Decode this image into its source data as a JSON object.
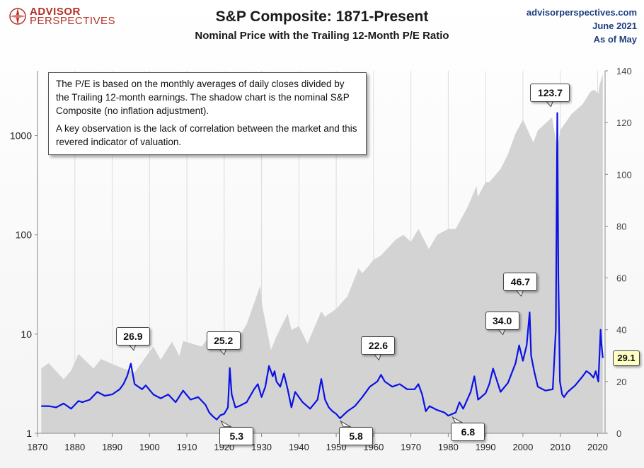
{
  "header": {
    "logo_line1": "ADVISOR",
    "logo_line2": "PERSPECTIVES",
    "title": "S&P Composite: 1871-Present",
    "subtitle": "Nominal Price with the Trailing 12-Month P/E Ratio",
    "source_site": "advisorperspectives.com",
    "source_date": "June 2021",
    "source_asof": "As of May"
  },
  "note": {
    "paragraph1": "The P/E is based on the monthly  averages of daily closes divided by the Trailing 12-month earnings. The shadow chart is the nominal S&P Composite (no inflation adjustment).",
    "paragraph2": "A key observation is the lack of correlation between the market and this revered indicator of valuation."
  },
  "colors": {
    "pe_line": "#0a12e6",
    "price_area": "#d3d3d3",
    "gridline": "#dddddd",
    "current_label_bg": "#ffffc4",
    "brand": "#b52f26"
  },
  "chart_data": {
    "type": "line",
    "x_axis": {
      "range": [
        1870,
        2022
      ],
      "ticks": [
        1870,
        1880,
        1890,
        1900,
        1910,
        1920,
        1930,
        1940,
        1950,
        1960,
        1970,
        1980,
        1990,
        2000,
        2010,
        2020
      ],
      "tick_labels": [
        "1870",
        "1880",
        "1890",
        "1900",
        "1910",
        "1920",
        "1930",
        "1940",
        "1950",
        "1960",
        "1970",
        "1980",
        "1990",
        "2000",
        "2010",
        "2020"
      ]
    },
    "y_left": {
      "scale": "log",
      "range": [
        1,
        4500
      ],
      "ticks": [
        1,
        10,
        100,
        1000
      ],
      "tick_labels": [
        "1",
        "10",
        "100",
        "1000"
      ]
    },
    "y_right": {
      "scale": "linear",
      "range": [
        0,
        140
      ],
      "ticks": [
        0,
        20,
        40,
        60,
        80,
        100,
        120,
        140
      ],
      "tick_labels": [
        "0",
        "20",
        "40",
        "60",
        "80",
        "100",
        "120",
        "140"
      ]
    },
    "grid": {
      "vertical": true,
      "horizontal": false
    },
    "series": [
      {
        "type": "area",
        "axis": "left",
        "x": [
          1871,
          1873,
          1877,
          1879,
          1881,
          1885,
          1887,
          1890,
          1893,
          1896,
          1899,
          1901,
          1903,
          1906,
          1908,
          1909,
          1914,
          1916,
          1917,
          1919,
          1921,
          1924,
          1926,
          1929.7,
          1930,
          1932.5,
          1934,
          1937,
          1938,
          1940,
          1942.3,
          1946,
          1947,
          1950,
          1953,
          1956,
          1957,
          1960,
          1962,
          1966,
          1968,
          1970,
          1972,
          1974.8,
          1977,
          1980,
          1982,
          1985,
          1987.6,
          1987.9,
          1990,
          1991,
          1994,
          1996,
          1998,
          2000,
          2002.8,
          2004,
          2007.8,
          2009.2,
          2010,
          2013,
          2016,
          2018,
          2019,
          2020.2,
          2020.5,
          2021.4
        ],
        "y": [
          4.5,
          5.1,
          3.5,
          4.3,
          6.3,
          4.5,
          5.6,
          5.0,
          4.5,
          4.1,
          5.9,
          7.5,
          5.5,
          8.4,
          6.0,
          8.5,
          7.5,
          9.5,
          7.0,
          9.0,
          6.7,
          9.5,
          12.5,
          31.0,
          21.0,
          6.9,
          9.5,
          16.0,
          11.0,
          12.0,
          8.0,
          17.0,
          15.0,
          18.0,
          24.0,
          46.0,
          41.0,
          56.0,
          62.0,
          90.0,
          100.0,
          85.0,
          115.0,
          72.0,
          100.0,
          115.0,
          115.0,
          185.0,
          310.0,
          240.0,
          340.0,
          340.0,
          460.0,
          650.0,
          1050.0,
          1450.0,
          850.0,
          1130.0,
          1530.0,
          735.0,
          1140.0,
          1650.0,
          2070.0,
          2750.0,
          2900.0,
          2650.0,
          3200.0,
          4180.0
        ]
      },
      {
        "type": "line",
        "axis": "right",
        "x": [
          1871,
          1873,
          1875,
          1877,
          1879,
          1881,
          1882,
          1884,
          1886,
          1888,
          1890,
          1892,
          1893,
          1894,
          1895,
          1896,
          1898,
          1899,
          1901,
          1903,
          1905,
          1907,
          1909,
          1911,
          1913,
          1915,
          1916,
          1917,
          1918,
          1919,
          1920,
          1921,
          1921.5,
          1922,
          1923,
          1924,
          1926,
          1928,
          1929,
          1930,
          1931,
          1932,
          1933,
          1933.5,
          1934,
          1935,
          1936,
          1937,
          1938,
          1939,
          1941,
          1943,
          1945,
          1946,
          1947,
          1948,
          1949,
          1950,
          1951,
          1953,
          1955,
          1957,
          1959,
          1961,
          1962,
          1963,
          1965,
          1967,
          1969,
          1971,
          1972,
          1973,
          1974,
          1975,
          1977,
          1979,
          1980,
          1982,
          1983,
          1984,
          1986,
          1987,
          1988,
          1990,
          1991,
          1992,
          1994,
          1996,
          1998,
          1999,
          2000,
          2001,
          2001.8,
          2002.2,
          2003,
          2004,
          2006,
          2008,
          2008.8,
          2009.2,
          2009.5,
          2009.9,
          2010.5,
          2011,
          2012,
          2014,
          2016,
          2017,
          2018,
          2018.9,
          2019.5,
          2020.2,
          2020.8,
          2021,
          2021.4
        ],
        "y": [
          10.5,
          10.5,
          10.0,
          11.5,
          9.5,
          12.5,
          12.0,
          13.0,
          16.0,
          14.5,
          15.0,
          17.0,
          19.0,
          22.0,
          26.9,
          19.0,
          17.0,
          18.5,
          15.0,
          13.5,
          15.0,
          12.0,
          16.5,
          13.0,
          14.0,
          11.0,
          8.0,
          6.5,
          5.3,
          7.0,
          7.5,
          10.0,
          25.2,
          15.0,
          10.0,
          10.5,
          12.0,
          17.0,
          19.0,
          14.0,
          18.0,
          26.0,
          22.0,
          24.0,
          20.0,
          18.0,
          23.0,
          17.0,
          10.0,
          16.0,
          12.0,
          9.5,
          13.0,
          21.0,
          13.0,
          10.0,
          8.5,
          7.5,
          5.8,
          8.5,
          10.5,
          14.0,
          18.0,
          20.0,
          22.6,
          20.0,
          18.0,
          19.0,
          17.0,
          17.0,
          19.0,
          15.0,
          8.5,
          10.5,
          9.0,
          8.0,
          6.8,
          8.0,
          12.0,
          9.5,
          16.0,
          22.0,
          13.0,
          15.5,
          19.0,
          25.0,
          16.0,
          19.5,
          27.0,
          34.0,
          28.0,
          34.0,
          46.7,
          30.0,
          24.0,
          18.0,
          16.5,
          17.0,
          40.0,
          123.7,
          60.0,
          20.0,
          15.0,
          14.0,
          16.0,
          18.5,
          22.0,
          24.0,
          23.0,
          21.5,
          24.0,
          20.0,
          40.0,
          35.0,
          29.1
        ]
      }
    ],
    "annotations": [
      {
        "label": "26.9",
        "x": 1895,
        "y": 26.9
      },
      {
        "label": "25.2",
        "x": 1921.5,
        "y": 25.2
      },
      {
        "label": "5.3",
        "x": 1918,
        "y": 5.3
      },
      {
        "label": "22.6",
        "x": 1962,
        "y": 22.6
      },
      {
        "label": "5.8",
        "x": 1950,
        "y": 5.8
      },
      {
        "label": "6.8",
        "x": 1980,
        "y": 6.8
      },
      {
        "label": "34.0",
        "x": 1999,
        "y": 34.0
      },
      {
        "label": "46.7",
        "x": 2001.8,
        "y": 46.7
      },
      {
        "label": "123.7",
        "x": 2009.2,
        "y": 123.7
      }
    ],
    "current_value": {
      "label": "29.1",
      "value": 29.1
    }
  }
}
